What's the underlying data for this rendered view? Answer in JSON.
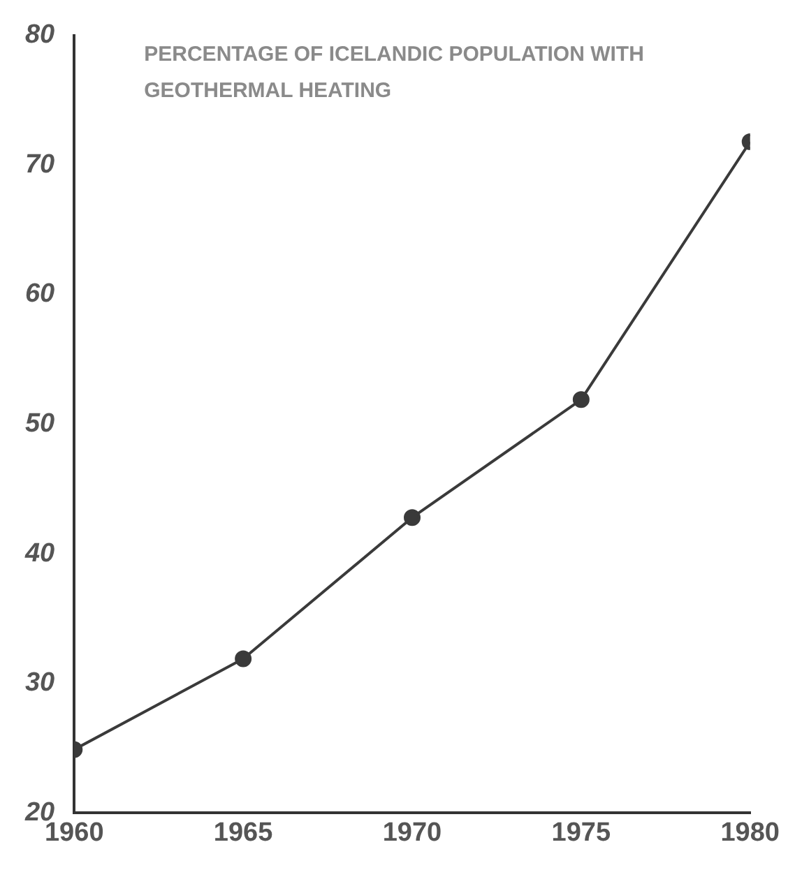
{
  "chart_data": {
    "type": "line",
    "title": "PERCENTAGE OF ICELANDIC POPULATION WITH GEOTHERMAL HEATING",
    "x": [
      1960,
      1965,
      1970,
      1975,
      1980
    ],
    "series": [
      {
        "color": "#3a3a3a",
        "values": [
          24.9,
          31.9,
          42.8,
          51.9,
          71.8
        ]
      }
    ],
    "xlim": [
      1960,
      1980
    ],
    "xticks": [
      1960,
      1965,
      1970,
      1975,
      1980
    ],
    "ylim": [
      20,
      80
    ],
    "yticks": [
      20,
      30,
      40,
      50,
      60,
      70,
      80
    ],
    "grid": false,
    "legend": false,
    "marker": "circle",
    "line_style": "solid"
  }
}
